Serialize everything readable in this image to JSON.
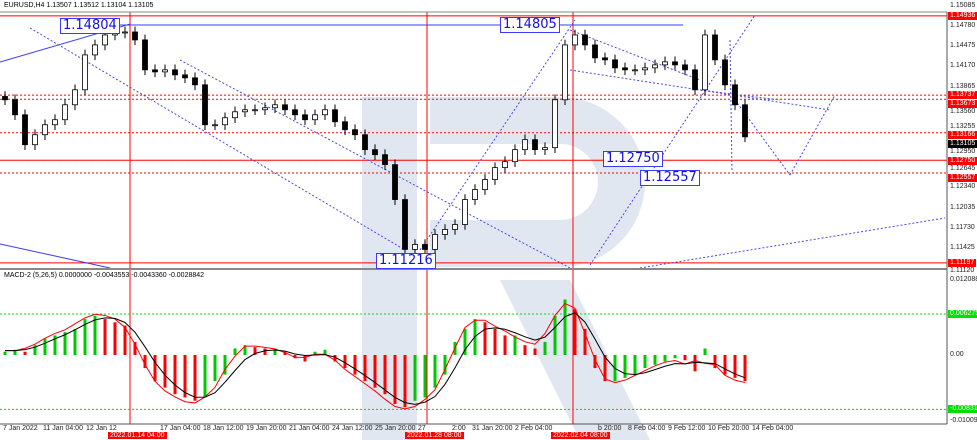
{
  "header": {
    "symbol_line": "EURUSD,H4  1.13507 1.13512 1.13104 1.13105",
    "macd_line": "MACD-2 (5,26,5) 0.0000000 -0.0043553 -0.0043360 -0.0028842"
  },
  "colors": {
    "bull": "#ffffff",
    "bear": "#000000",
    "level_red": "#ff0000",
    "trend_blue": "#3a3aff",
    "macd_up": "#00c800",
    "macd_down": "#ff0000",
    "signal": "#ff0000",
    "main": "#000000",
    "watermark": "#c9d4e6"
  },
  "chart_data": [
    {
      "type": "candlestick",
      "title": "EURUSD,H4",
      "ylim": [
        1.1112,
        1.15085
      ],
      "closes": [
        1.13666,
        1.13439,
        1.12986,
        1.13137,
        1.13288,
        1.13364,
        1.1359,
        1.13817,
        1.14345,
        1.14496,
        1.14647,
        1.14677,
        1.14692,
        1.14572,
        1.14119,
        1.14088,
        1.14119,
        1.14043,
        1.13998,
        1.13892,
        1.13288,
        1.13288,
        1.13394,
        1.13484,
        1.13515,
        1.13515,
        1.13545,
        1.1359,
        1.13515,
        1.13439,
        1.13364,
        1.13439,
        1.13515,
        1.13333,
        1.13213,
        1.13137,
        1.12911,
        1.12835,
        1.12684,
        1.12156,
        1.11401,
        1.11476,
        1.11401,
        1.11627,
        1.11703,
        1.11778,
        1.12156,
        1.12307,
        1.12458,
        1.12639,
        1.12729,
        1.12911,
        1.13062,
        1.12911,
        1.12941,
        1.13666,
        1.14496,
        1.14647,
        1.14496,
        1.143,
        1.1427,
        1.14149,
        1.14119,
        1.14119,
        1.14149,
        1.14194,
        1.1424,
        1.14194,
        1.14119,
        1.13817,
        1.14647,
        1.1427,
        1.13892,
        1.1359,
        1.13105
      ],
      "price_ticks": [
        "1.15085",
        "1.14780",
        "1.14475",
        "1.14170",
        "1.13865",
        "1.13560",
        "1.13255",
        "1.12950",
        "1.12645",
        "1.12340",
        "1.12035",
        "1.11730",
        "1.11425",
        "1.11120"
      ],
      "levels": [
        {
          "price": 1.14936,
          "label": "1.14936",
          "style": "solid"
        },
        {
          "price": 1.13737,
          "label": "1.13737",
          "style": "dashed"
        },
        {
          "price": 1.13673,
          "label": "1.13673",
          "style": "dashed"
        },
        {
          "price": 1.13166,
          "label": "1.13166",
          "style": "dashed"
        },
        {
          "price": 1.1275,
          "label": "1.12750",
          "style": "solid"
        },
        {
          "price": 1.12557,
          "label": "1.12557",
          "style": "dashed"
        },
        {
          "price": 1.11197,
          "label": "1.11197",
          "style": "solid"
        }
      ],
      "current_price": "1.13105",
      "annotations": [
        "1.14804",
        "1.14805",
        "1.11216",
        "1.12750",
        "1.12557"
      ]
    },
    {
      "type": "bar",
      "title": "MACD-2 (5,26,5)",
      "ylim": [
        -0.010098,
        0.0120881
      ],
      "histogram": [
        0.0005,
        0.0008,
        0.0005,
        0.0015,
        0.0025,
        0.003,
        0.0035,
        0.004,
        0.0055,
        0.006,
        0.0055,
        0.005,
        0.0045,
        0.002,
        -0.002,
        -0.004,
        -0.005,
        -0.006,
        -0.0065,
        -0.007,
        -0.0065,
        -0.004,
        -0.003,
        0.001,
        0.0015,
        0.0012,
        0.001,
        0.001,
        0.0005,
        -0.0005,
        -0.001,
        0.0005,
        0.0008,
        -0.001,
        -0.002,
        -0.003,
        -0.004,
        -0.005,
        -0.006,
        -0.0075,
        -0.008,
        -0.007,
        -0.0065,
        -0.005,
        -0.003,
        0.002,
        0.004,
        0.0055,
        0.005,
        0.004,
        0.003,
        0.003,
        0.0015,
        0.001,
        0.002,
        0.006,
        0.0085,
        0.007,
        0.004,
        -0.002,
        -0.004,
        -0.004,
        -0.0035,
        -0.003,
        -0.002,
        -0.0015,
        -0.001,
        -0.0005,
        -0.0008,
        -0.0025,
        0.001,
        -0.002,
        -0.003,
        -0.0035,
        -0.004
      ],
      "ticks": [
        "0.0120881",
        "0.00",
        "-0.010098"
      ],
      "levels": [
        {
          "value": 0.0062759,
          "label": "0.0062759"
        },
        {
          "value": -0.0083124,
          "label": "-0.0083124"
        }
      ]
    }
  ],
  "time_axis": [
    "7 Jan 2022",
    "11 Jan 04:00",
    "12 Jan 12",
    "2022.01.14 04:00",
    "17 Jan 04:00",
    "18 Jan 12:00",
    "19 Jan 20:00",
    "21 Jan 04:00",
    "24 Jan 12:00",
    "25 Jan 20:00",
    "27",
    "2022.01.28 08:00",
    "2:00",
    "31 Jan 20:00",
    "2 Feb 04:00",
    "2022.02.04 08:00",
    "b 20:00",
    "8 Feb 04:00",
    "9 Feb 12:00",
    "10 Feb 20:00",
    "14 Feb 04:00"
  ]
}
